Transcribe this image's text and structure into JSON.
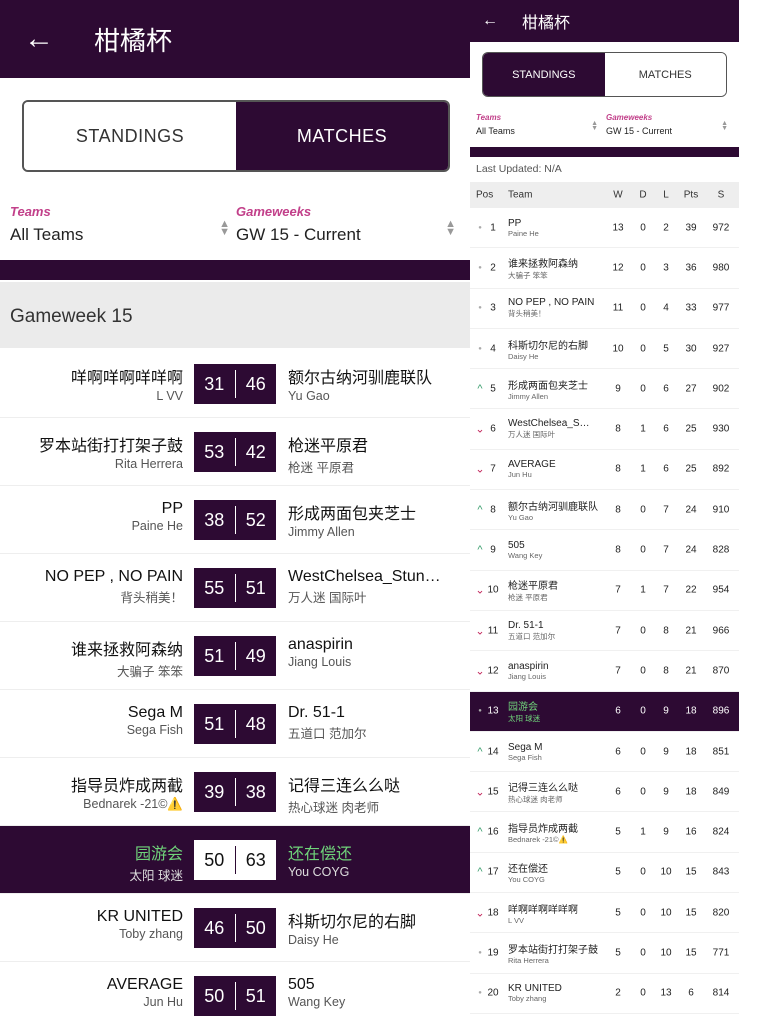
{
  "app": {
    "title": "柑橘杯",
    "tabs": [
      "STANDINGS",
      "MATCHES"
    ]
  },
  "filters": {
    "teams_label": "Teams",
    "teams_value": "All Teams",
    "gw_label": "Gameweeks",
    "gw_value": "GW 15 - Current"
  },
  "matches_view": {
    "active_tab": "MATCHES",
    "gameweek_title": "Gameweek 15",
    "matches": [
      {
        "home": "咩啊咩啊咩咩啊",
        "home_mgr": "L VV",
        "hs": "31",
        "as": "46",
        "away": "额尔古纳河驯鹿联队",
        "away_mgr": "Yu Gao"
      },
      {
        "home": "罗本站街打打架子鼓",
        "home_mgr": "Rita Herrera",
        "hs": "53",
        "as": "42",
        "away": "枪迷平原君",
        "away_mgr": "枪迷 平原君"
      },
      {
        "home": "PP",
        "home_mgr": "Paine He",
        "hs": "38",
        "as": "52",
        "away": "形成两面包夹芝士",
        "away_mgr": "Jimmy Allen"
      },
      {
        "home": "NO PEP , NO PAIN",
        "home_mgr": "背头稍美！",
        "hs": "55",
        "as": "51",
        "away": "WestChelsea_Stun…",
        "away_mgr": "万人迷 国际叶"
      },
      {
        "home": "谁来拯救阿森纳",
        "home_mgr": "大骗子 笨笨",
        "hs": "51",
        "as": "49",
        "away": "anaspirin",
        "away_mgr": "Jiang Louis"
      },
      {
        "home": "Sega M",
        "home_mgr": "Sega Fish",
        "hs": "51",
        "as": "48",
        "away": "Dr. 51-1",
        "away_mgr": "五道口 范加尔"
      },
      {
        "home": "指导员炸成两截",
        "home_mgr": "Bednarek -21©⚠️",
        "hs": "39",
        "as": "38",
        "away": "记得三连么么哒",
        "away_mgr": "热心球迷 肉老师"
      },
      {
        "home": "园游会",
        "home_mgr": "太阳 球迷",
        "hs": "50",
        "as": "63",
        "away": "还在偿还",
        "away_mgr": "You COYG",
        "mine": true
      },
      {
        "home": "KR UNITED",
        "home_mgr": "Toby zhang",
        "hs": "46",
        "as": "50",
        "away": "科斯切尔尼的右脚",
        "away_mgr": "Daisy He"
      },
      {
        "home": "AVERAGE",
        "home_mgr": "Jun Hu",
        "hs": "50",
        "as": "51",
        "away": "505",
        "away_mgr": "Wang Key"
      }
    ]
  },
  "standings_view": {
    "active_tab": "STANDINGS",
    "last_updated": "Last Updated: N/A",
    "headers": [
      "Pos",
      "Team",
      "W",
      "D",
      "L",
      "Pts",
      "S"
    ],
    "colors": {
      "up": "#3a9e6e",
      "down": "#c2245a",
      "same": "#aaaaaa",
      "brand": "#2d0a33"
    },
    "rows": [
      {
        "move": "same",
        "pos": "1",
        "team": "PP",
        "mgr": "Paine He",
        "w": "13",
        "d": "0",
        "l": "2",
        "pts": "39",
        "s": "972"
      },
      {
        "move": "same",
        "pos": "2",
        "team": "谁来拯救阿森纳",
        "mgr": "大骗子 笨笨",
        "w": "12",
        "d": "0",
        "l": "3",
        "pts": "36",
        "s": "980"
      },
      {
        "move": "same",
        "pos": "3",
        "team": "NO PEP , NO PAIN",
        "mgr": "背头稍美！",
        "w": "11",
        "d": "0",
        "l": "4",
        "pts": "33",
        "s": "977"
      },
      {
        "move": "same",
        "pos": "4",
        "team": "科斯切尔尼的右脚",
        "mgr": "Daisy He",
        "w": "10",
        "d": "0",
        "l": "5",
        "pts": "30",
        "s": "927"
      },
      {
        "move": "up",
        "pos": "5",
        "team": "形成两面包夹芝士",
        "mgr": "Jimmy Allen",
        "w": "9",
        "d": "0",
        "l": "6",
        "pts": "27",
        "s": "902"
      },
      {
        "move": "down",
        "pos": "6",
        "team": "WestChelsea_S…",
        "mgr": "万人迷 国际叶",
        "w": "8",
        "d": "1",
        "l": "6",
        "pts": "25",
        "s": "930"
      },
      {
        "move": "down",
        "pos": "7",
        "team": "AVERAGE",
        "mgr": "Jun Hu",
        "w": "8",
        "d": "1",
        "l": "6",
        "pts": "25",
        "s": "892"
      },
      {
        "move": "up",
        "pos": "8",
        "team": "额尔古纳河驯鹿联队",
        "mgr": "Yu Gao",
        "w": "8",
        "d": "0",
        "l": "7",
        "pts": "24",
        "s": "910"
      },
      {
        "move": "up",
        "pos": "9",
        "team": "505",
        "mgr": "Wang Key",
        "w": "8",
        "d": "0",
        "l": "7",
        "pts": "24",
        "s": "828"
      },
      {
        "move": "down",
        "pos": "10",
        "team": "枪迷平原君",
        "mgr": "枪迷 平原君",
        "w": "7",
        "d": "1",
        "l": "7",
        "pts": "22",
        "s": "954"
      },
      {
        "move": "down",
        "pos": "11",
        "team": "Dr. 51-1",
        "mgr": "五道口 范加尔",
        "w": "7",
        "d": "0",
        "l": "8",
        "pts": "21",
        "s": "966"
      },
      {
        "move": "down",
        "pos": "12",
        "team": "anaspirin",
        "mgr": "Jiang Louis",
        "w": "7",
        "d": "0",
        "l": "8",
        "pts": "21",
        "s": "870"
      },
      {
        "move": "same",
        "pos": "13",
        "team": "园游会",
        "mgr": "太阳 球迷",
        "w": "6",
        "d": "0",
        "l": "9",
        "pts": "18",
        "s": "896",
        "mine": true
      },
      {
        "move": "up",
        "pos": "14",
        "team": "Sega M",
        "mgr": "Sega Fish",
        "w": "6",
        "d": "0",
        "l": "9",
        "pts": "18",
        "s": "851"
      },
      {
        "move": "down",
        "pos": "15",
        "team": "记得三连么么哒",
        "mgr": "热心球迷 肉老师",
        "w": "6",
        "d": "0",
        "l": "9",
        "pts": "18",
        "s": "849"
      },
      {
        "move": "up",
        "pos": "16",
        "team": "指导员炸成两截",
        "mgr": "Bednarek -21©⚠️",
        "w": "5",
        "d": "1",
        "l": "9",
        "pts": "16",
        "s": "824"
      },
      {
        "move": "up",
        "pos": "17",
        "team": "还在偿还",
        "mgr": "You COYG",
        "w": "5",
        "d": "0",
        "l": "10",
        "pts": "15",
        "s": "843"
      },
      {
        "move": "down",
        "pos": "18",
        "team": "咩啊咩啊咩咩啊",
        "mgr": "L VV",
        "w": "5",
        "d": "0",
        "l": "10",
        "pts": "15",
        "s": "820"
      },
      {
        "move": "same",
        "pos": "19",
        "team": "罗本站街打打架子鼓",
        "mgr": "Rita Herrera",
        "w": "5",
        "d": "0",
        "l": "10",
        "pts": "15",
        "s": "771"
      },
      {
        "move": "same",
        "pos": "20",
        "team": "KR UNITED",
        "mgr": "Toby zhang",
        "w": "2",
        "d": "0",
        "l": "13",
        "pts": "6",
        "s": "814"
      }
    ]
  }
}
